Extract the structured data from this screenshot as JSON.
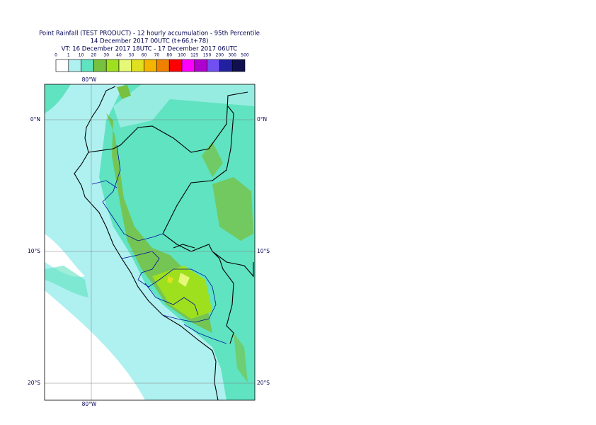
{
  "header": {
    "title": [
      "Point Rainfall (TEST PRODUCT) - 12 hourly accumulation - 95th Percentile",
      "14 December 2017 00UTC (t+66,t+78)",
      "VT: 16 December 2017 18UTC - 17 December 2017 06UTC"
    ]
  },
  "legend": {
    "labels": [
      0,
      1,
      10,
      20,
      30,
      40,
      50,
      60,
      70,
      80,
      100,
      125,
      150,
      200,
      300,
      500
    ],
    "colors": [
      "#ffffff",
      "#aff0f0",
      "#5fe3c0",
      "#78c040",
      "#9ee01e",
      "#e6f878",
      "#e0e020",
      "#f4b400",
      "#f08000",
      "#ff0000",
      "#ff00ff",
      "#b000d0",
      "#7050f0",
      "#2020a0",
      "#101050"
    ]
  },
  "map": {
    "lon_label": "80°W",
    "lat_labels": [
      "0°N",
      "10°S",
      "20°S"
    ]
  }
}
